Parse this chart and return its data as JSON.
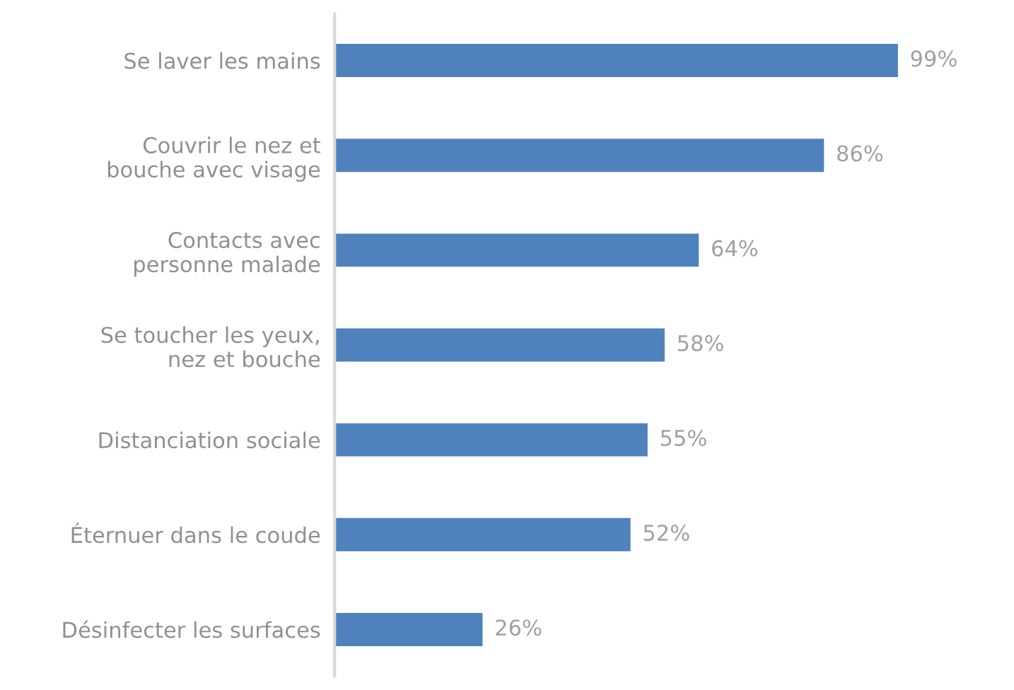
{
  "chart_data": {
    "type": "bar",
    "orientation": "horizontal",
    "categories": [
      "Se laver les mains",
      "Couvrir le nez et\nbouche avec visage",
      "Contacts avec\npersonne malade",
      "Se toucher les yeux,\nnez et bouche",
      "Distanciation sociale",
      "Éternuer dans le coude",
      "Désinfecter les surfaces"
    ],
    "values": [
      99,
      86,
      64,
      58,
      55,
      52,
      26
    ],
    "value_labels": [
      "99%",
      "86%",
      "64%",
      "58%",
      "55%",
      "52%",
      "26%"
    ],
    "color": "#4f81bd",
    "tick_labels": "y",
    "grid": false,
    "legend": false
  }
}
